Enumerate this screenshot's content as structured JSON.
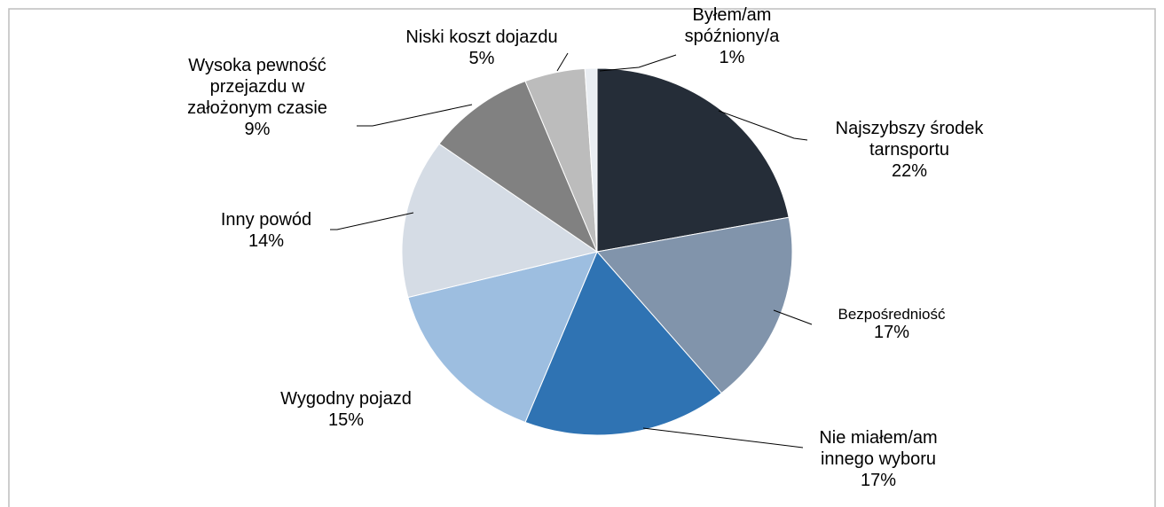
{
  "chart_data": {
    "type": "pie",
    "categories": [
      "Najszybszy środek tarnsportu",
      "Bezpośredniość",
      "Nie miałem/am innego wyboru",
      "Wygodny pojazd",
      "Inny powód",
      "Wysoka pewność przejazdu w założonym czasie",
      "Niski koszt dojazdu",
      "Byłem/am spóźniony/a"
    ],
    "values": [
      22,
      17,
      17,
      15,
      14,
      9,
      5,
      1
    ],
    "value_labels": [
      "22%",
      "17%",
      "17%",
      "15%",
      "14%",
      "9%",
      "5%",
      "1%"
    ],
    "colors": [
      "#252d38",
      "#8194ab",
      "#2f73b3",
      "#9dbee0",
      "#d5dce5",
      "#818181",
      "#bcbcbc",
      "#eaeef3"
    ]
  }
}
